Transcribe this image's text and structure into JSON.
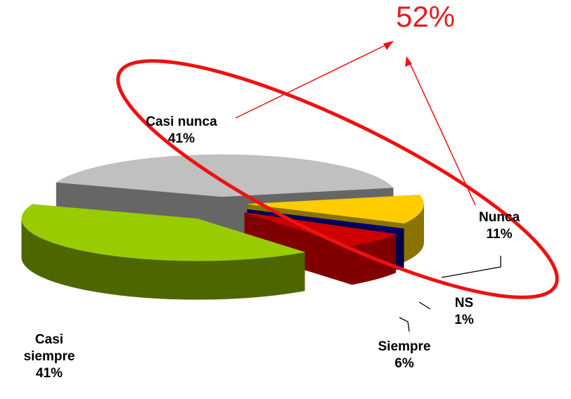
{
  "chart_data": {
    "type": "pie",
    "categories": [
      "Casi nunca",
      "Nunca",
      "NS",
      "Siempre",
      "Casi siempre"
    ],
    "values": [
      41,
      11,
      1,
      6,
      41
    ],
    "value_labels": [
      "41%",
      "11%",
      "1%",
      "6%",
      "41%"
    ],
    "colors": [
      "#c0c0c0",
      "#ffcc00",
      "#000080",
      "#cc0000",
      "#99cc00"
    ],
    "side_colors": [
      "#666666",
      "#8a7300",
      "#00004d",
      "#800000",
      "#4d6600"
    ],
    "annotation": "52%"
  }
}
